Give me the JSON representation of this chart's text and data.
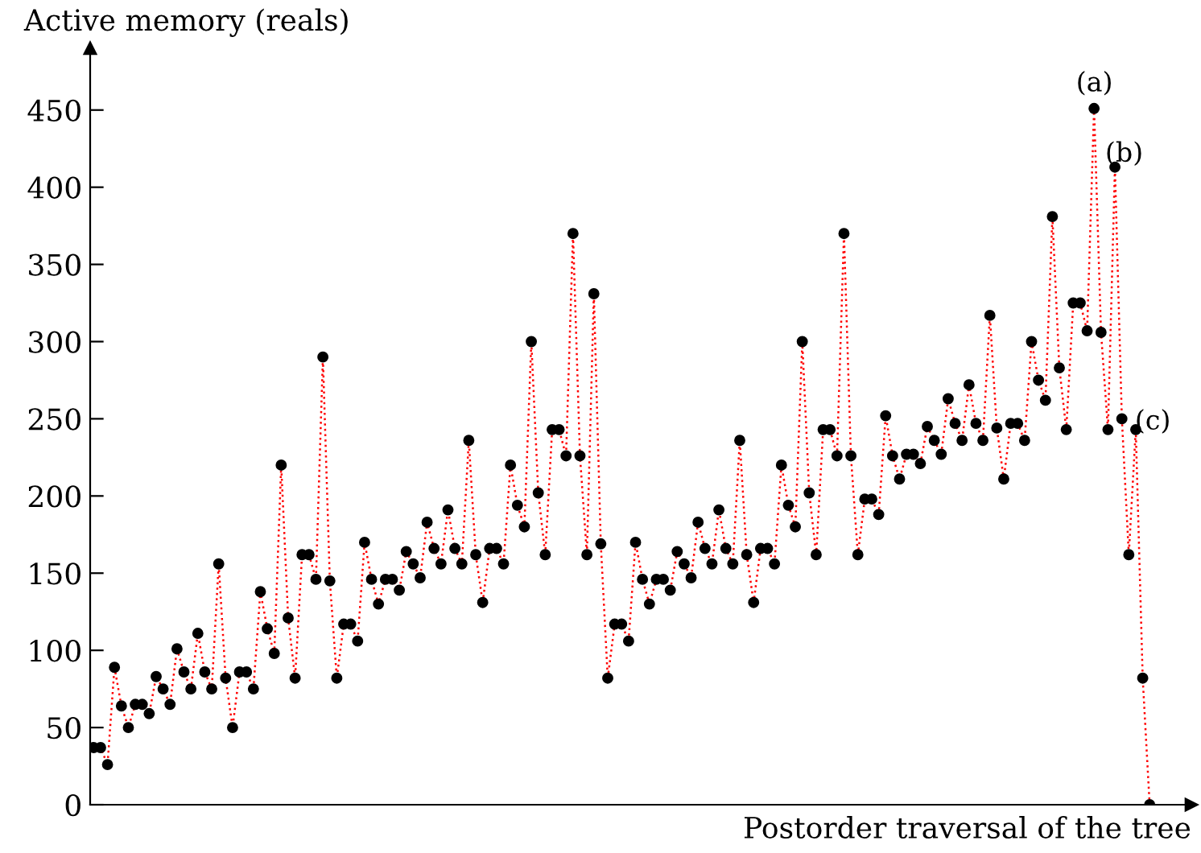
{
  "chart_data": {
    "type": "line",
    "xlabel": "Postorder traversal of the tree",
    "ylabel": "Active memory (reals)",
    "categories": [
      null,
      null,
      null,
      null,
      null,
      null,
      null,
      null,
      null,
      null,
      null,
      null,
      null,
      null,
      null,
      null,
      null,
      null,
      null,
      null,
      null,
      null,
      null,
      null,
      null,
      null,
      null,
      null,
      null,
      null,
      null,
      null,
      null,
      null,
      null,
      null,
      null,
      null,
      null,
      null,
      null,
      null,
      null,
      null,
      null,
      null,
      null,
      null,
      null,
      null,
      null,
      null,
      null,
      null,
      null,
      null,
      null,
      null,
      null,
      null,
      null,
      null,
      null,
      null,
      null,
      null,
      null,
      null,
      null,
      null,
      null,
      null,
      null,
      null,
      null,
      null,
      null,
      null,
      null,
      null,
      null,
      null,
      null,
      null,
      null,
      null,
      null,
      null,
      null,
      null,
      null,
      null,
      null,
      null,
      null,
      null,
      null,
      null,
      null,
      null,
      null,
      null,
      null,
      null,
      null,
      null,
      null,
      null,
      null,
      null,
      null,
      null,
      null,
      null,
      null,
      null,
      null,
      null,
      null,
      null,
      null,
      null,
      null,
      null,
      null,
      null,
      null,
      null,
      null,
      null,
      null,
      null,
      null,
      null,
      null,
      null,
      null,
      null,
      null,
      null,
      null,
      null,
      null,
      null,
      null,
      null,
      null,
      null,
      null,
      null,
      null,
      null,
      null
    ],
    "series": [
      {
        "color": "#ff0000",
        "values": [
          37,
          37,
          26,
          89,
          64,
          50,
          65,
          65,
          59,
          83,
          75,
          65,
          101,
          86,
          75,
          111,
          86,
          75,
          156,
          82,
          50,
          86,
          86,
          75,
          138,
          114,
          98,
          220,
          121,
          82,
          162,
          162,
          146,
          290,
          145,
          82,
          117,
          117,
          106,
          170,
          146,
          130,
          146,
          146,
          139,
          164,
          156,
          147,
          183,
          166,
          156,
          191,
          166,
          156,
          236,
          162,
          131,
          166,
          166,
          156,
          220,
          194,
          180,
          300,
          202,
          162,
          243,
          243,
          226,
          370,
          226,
          162,
          331,
          169,
          82,
          117,
          117,
          106,
          170,
          146,
          130,
          146,
          146,
          139,
          164,
          156,
          147,
          183,
          166,
          156,
          191,
          166,
          156,
          236,
          162,
          131,
          166,
          166,
          156,
          220,
          194,
          180,
          300,
          202,
          162,
          243,
          243,
          226,
          370,
          226,
          162,
          198,
          198,
          188,
          252,
          226,
          211,
          227,
          227,
          221,
          245,
          236,
          227,
          263,
          247,
          236,
          272,
          247,
          236,
          317,
          244,
          211,
          247,
          247,
          236,
          300,
          275,
          262,
          381,
          283,
          243,
          325,
          325,
          307,
          451,
          306,
          243,
          413,
          250,
          162,
          243,
          82,
          0
        ]
      }
    ],
    "ylim": [
      0,
      490
    ],
    "yticks": [
      0,
      50,
      100,
      150,
      200,
      250,
      300,
      350,
      400,
      450
    ],
    "marker": "circle",
    "line_style": "dotted",
    "grid": false,
    "legend": false,
    "annotations": [
      "(a)",
      "(b)",
      "(c)"
    ]
  }
}
